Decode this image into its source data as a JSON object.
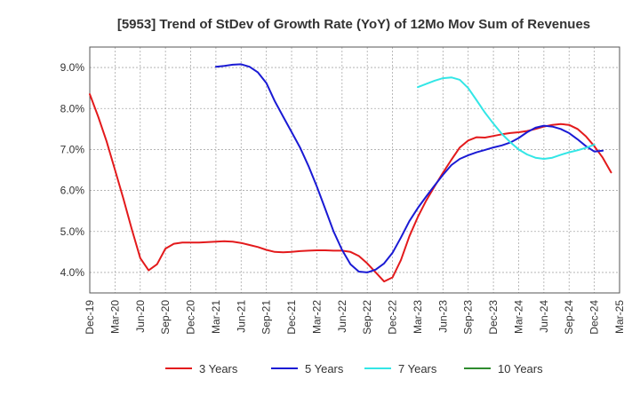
{
  "chart_data": {
    "type": "line",
    "title": "[5953]  Trend of StDev of Growth Rate (YoY) of 12Mo Mov Sum of Revenues",
    "xlabel": "",
    "ylabel": "",
    "ylim": [
      3.5,
      9.5
    ],
    "yticks": [
      4.0,
      5.0,
      6.0,
      7.0,
      8.0,
      9.0
    ],
    "ytick_labels": [
      "4.0%",
      "5.0%",
      "6.0%",
      "7.0%",
      "8.0%",
      "9.0%"
    ],
    "x_start": "Dec-19",
    "x_months": 63,
    "x_tick_labels": [
      "Dec-19",
      "Mar-20",
      "Jun-20",
      "Sep-20",
      "Dec-20",
      "Mar-21",
      "Jun-21",
      "Sep-21",
      "Dec-21",
      "Mar-22",
      "Jun-22",
      "Sep-22",
      "Dec-22",
      "Mar-23",
      "Jun-23",
      "Sep-23",
      "Dec-23",
      "Mar-24",
      "Jun-24",
      "Sep-24",
      "Dec-24",
      "Mar-25"
    ],
    "grid": true,
    "legend_position": "bottom",
    "series": [
      {
        "name": "3 Years",
        "color": "#e31a1c",
        "start_index": 0,
        "values": [
          8.35,
          7.8,
          7.2,
          6.5,
          5.8,
          5.05,
          4.35,
          4.05,
          4.2,
          4.58,
          4.7,
          4.73,
          4.73,
          4.73,
          4.74,
          4.75,
          4.76,
          4.75,
          4.72,
          4.67,
          4.62,
          4.55,
          4.5,
          4.49,
          4.5,
          4.52,
          4.53,
          4.54,
          4.54,
          4.53,
          4.53,
          4.5,
          4.4,
          4.22,
          4.0,
          3.78,
          3.88,
          4.3,
          4.88,
          5.35,
          5.75,
          6.1,
          6.43,
          6.75,
          7.05,
          7.22,
          7.3,
          7.29,
          7.33,
          7.37,
          7.4,
          7.42,
          7.45,
          7.5,
          7.56,
          7.6,
          7.62,
          7.6,
          7.5,
          7.32,
          7.08,
          6.8,
          6.44
        ]
      },
      {
        "name": "5 Years",
        "color": "#1a1ad4",
        "start_index": 15,
        "values": [
          9.02,
          9.04,
          9.07,
          9.08,
          9.02,
          8.88,
          8.62,
          8.18,
          7.8,
          7.43,
          7.05,
          6.6,
          6.1,
          5.55,
          5.0,
          4.55,
          4.2,
          4.02,
          4.0,
          4.07,
          4.22,
          4.48,
          4.85,
          5.25,
          5.57,
          5.85,
          6.12,
          6.38,
          6.62,
          6.77,
          6.86,
          6.93,
          6.99,
          7.05,
          7.1,
          7.17,
          7.28,
          7.42,
          7.53,
          7.58,
          7.56,
          7.5,
          7.4,
          7.25,
          7.08,
          6.95,
          6.97
        ]
      },
      {
        "name": "7 Years",
        "color": "#33e6e6",
        "start_index": 39,
        "values": [
          8.52,
          8.6,
          8.68,
          8.74,
          8.76,
          8.7,
          8.5,
          8.2,
          7.9,
          7.63,
          7.38,
          7.18,
          7.0,
          6.88,
          6.8,
          6.77,
          6.8,
          6.87,
          6.93,
          6.98,
          7.04,
          7.12
        ]
      },
      {
        "name": "10 Years",
        "color": "#2e8b2e",
        "start_index": 0,
        "values": []
      }
    ]
  }
}
